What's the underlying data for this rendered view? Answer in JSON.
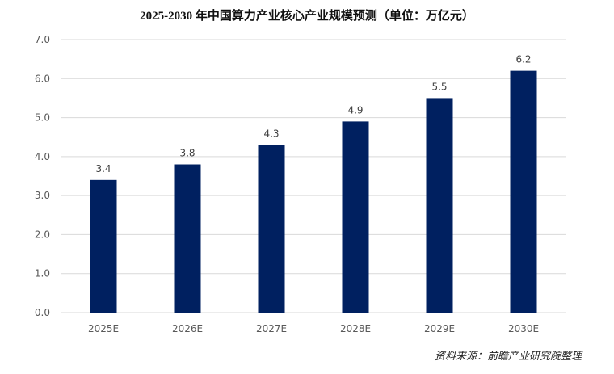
{
  "chart_data": {
    "type": "bar",
    "title": "2025-2030 年中国算力产业核心产业规模预测（单位：万亿元）",
    "categories": [
      "2025E",
      "2026E",
      "2027E",
      "2028E",
      "2029E",
      "2030E"
    ],
    "values": [
      3.4,
      3.8,
      4.3,
      4.9,
      5.5,
      6.2
    ],
    "data_labels": [
      "3.4",
      "3.8",
      "4.3",
      "4.9",
      "5.5",
      "6.2"
    ],
    "y_ticks": [
      "0.0",
      "1.0",
      "2.0",
      "3.0",
      "4.0",
      "5.0",
      "6.0",
      "7.0"
    ],
    "ylim": [
      0,
      7
    ],
    "grid": true,
    "legend": "none",
    "bar_color": "#002060",
    "grid_color": "#d9d9d9"
  },
  "source": "资料来源：前瞻产业研究院整理"
}
